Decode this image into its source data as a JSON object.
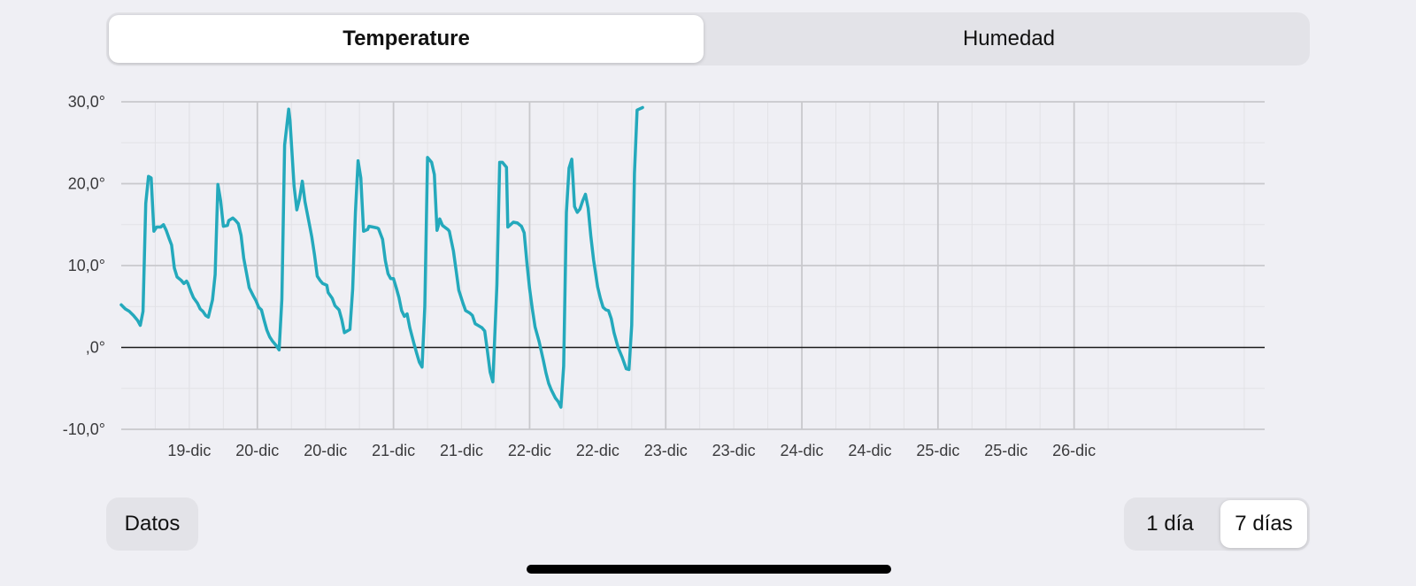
{
  "segmented": {
    "left_label": "Temperature",
    "right_label": "Humedad",
    "selected": "Temperature"
  },
  "buttons": {
    "datos_label": "Datos"
  },
  "range": {
    "options": [
      "1 día",
      "7 días"
    ],
    "selected": "7 días"
  },
  "colors": {
    "line": "#24a9bc",
    "grid_major": "#c8c8cc",
    "grid_minor": "#e2e2e6",
    "zero_line": "#1a1a1a",
    "background": "#efeff4"
  },
  "chart_data": {
    "type": "line",
    "title": "",
    "xlabel": "",
    "ylabel": "",
    "ylim": [
      -10,
      30
    ],
    "y_ticks": [
      {
        "value": 30,
        "label": "30,0°"
      },
      {
        "value": 20,
        "label": "20,0°"
      },
      {
        "value": 10,
        "label": "10,0°"
      },
      {
        "value": 0,
        "label": ",0°"
      },
      {
        "value": -10,
        "label": "-10,0°"
      }
    ],
    "x_range_days": [
      18.5,
      26.9
    ],
    "x_ticks": [
      {
        "day": 19.0,
        "label": "19-dic"
      },
      {
        "day": 19.5,
        "label": "20-dic"
      },
      {
        "day": 20.0,
        "label": "20-dic"
      },
      {
        "day": 20.5,
        "label": "21-dic"
      },
      {
        "day": 21.0,
        "label": "21-dic"
      },
      {
        "day": 21.5,
        "label": "22-dic"
      },
      {
        "day": 22.0,
        "label": "22-dic"
      },
      {
        "day": 22.5,
        "label": "23-dic"
      },
      {
        "day": 23.0,
        "label": "23-dic"
      },
      {
        "day": 23.5,
        "label": "24-dic"
      },
      {
        "day": 24.0,
        "label": "24-dic"
      },
      {
        "day": 24.5,
        "label": "25-dic"
      },
      {
        "day": 25.0,
        "label": "25-dic"
      },
      {
        "day": 25.5,
        "label": "26-dic"
      }
    ],
    "major_gridlines_days": [
      19.5,
      20.5,
      21.5,
      22.5,
      23.5,
      24.5,
      25.5
    ],
    "grid": true,
    "series": [
      {
        "points": [
          [
            18.5,
            5.2
          ],
          [
            18.53,
            4.7
          ],
          [
            18.56,
            4.4
          ],
          [
            18.59,
            3.9
          ],
          [
            18.62,
            3.3
          ],
          [
            18.64,
            2.7
          ],
          [
            18.66,
            4.4
          ],
          [
            18.68,
            17.6
          ],
          [
            18.7,
            20.9
          ],
          [
            18.72,
            20.7
          ],
          [
            18.74,
            14.2
          ],
          [
            18.76,
            14.7
          ],
          [
            18.79,
            14.7
          ],
          [
            18.81,
            15.0
          ],
          [
            18.83,
            14.3
          ],
          [
            18.85,
            13.4
          ],
          [
            18.87,
            12.5
          ],
          [
            18.89,
            9.7
          ],
          [
            18.91,
            8.6
          ],
          [
            18.94,
            8.2
          ],
          [
            18.96,
            7.8
          ],
          [
            18.98,
            8.1
          ],
          [
            18.99,
            7.8
          ],
          [
            19.01,
            6.9
          ],
          [
            19.03,
            6.1
          ],
          [
            19.06,
            5.4
          ],
          [
            19.08,
            4.7
          ],
          [
            19.1,
            4.4
          ],
          [
            19.12,
            3.9
          ],
          [
            19.14,
            3.7
          ],
          [
            19.17,
            5.8
          ],
          [
            19.19,
            8.9
          ],
          [
            19.21,
            19.9
          ],
          [
            19.23,
            17.9
          ],
          [
            19.25,
            14.8
          ],
          [
            19.28,
            14.9
          ],
          [
            19.29,
            15.5
          ],
          [
            19.32,
            15.8
          ],
          [
            19.34,
            15.5
          ],
          [
            19.36,
            15.1
          ],
          [
            19.38,
            13.7
          ],
          [
            19.4,
            10.9
          ],
          [
            19.42,
            9.1
          ],
          [
            19.44,
            7.3
          ],
          [
            19.47,
            6.3
          ],
          [
            19.49,
            5.7
          ],
          [
            19.51,
            4.9
          ],
          [
            19.53,
            4.6
          ],
          [
            19.55,
            3.3
          ],
          [
            19.57,
            2.1
          ],
          [
            19.59,
            1.3
          ],
          [
            19.61,
            0.8
          ],
          [
            19.64,
            0.2
          ],
          [
            19.66,
            -0.3
          ],
          [
            19.68,
            5.9
          ],
          [
            19.7,
            24.7
          ],
          [
            19.73,
            29.1
          ],
          [
            19.74,
            27.7
          ],
          [
            19.77,
            19.7
          ],
          [
            19.79,
            16.8
          ],
          [
            19.81,
            18.2
          ],
          [
            19.83,
            20.3
          ],
          [
            19.85,
            17.8
          ],
          [
            19.88,
            15.2
          ],
          [
            19.9,
            13.5
          ],
          [
            19.92,
            11.3
          ],
          [
            19.94,
            8.7
          ],
          [
            19.96,
            8.2
          ],
          [
            19.98,
            7.8
          ],
          [
            20.01,
            7.6
          ],
          [
            20.02,
            6.7
          ],
          [
            20.05,
            6.0
          ],
          [
            20.07,
            5.1
          ],
          [
            20.1,
            4.6
          ],
          [
            20.12,
            3.4
          ],
          [
            20.14,
            1.8
          ],
          [
            20.18,
            2.2
          ],
          [
            20.2,
            7.1
          ],
          [
            20.22,
            16.5
          ],
          [
            20.24,
            22.8
          ],
          [
            20.26,
            20.7
          ],
          [
            20.28,
            14.2
          ],
          [
            20.31,
            14.4
          ],
          [
            20.32,
            14.8
          ],
          [
            20.35,
            14.7
          ],
          [
            20.38,
            14.6
          ],
          [
            20.39,
            14.5
          ],
          [
            20.42,
            13.2
          ],
          [
            20.44,
            10.6
          ],
          [
            20.46,
            9.0
          ],
          [
            20.48,
            8.4
          ],
          [
            20.5,
            8.4
          ],
          [
            20.52,
            7.3
          ],
          [
            20.54,
            6.1
          ],
          [
            20.56,
            4.5
          ],
          [
            20.58,
            3.8
          ],
          [
            20.6,
            4.1
          ],
          [
            20.62,
            2.4
          ],
          [
            20.65,
            0.5
          ],
          [
            20.67,
            -0.7
          ],
          [
            20.69,
            -1.8
          ],
          [
            20.71,
            -2.4
          ],
          [
            20.73,
            5.0
          ],
          [
            20.75,
            23.2
          ],
          [
            20.78,
            22.6
          ],
          [
            20.8,
            21.1
          ],
          [
            20.82,
            14.3
          ],
          [
            20.83,
            14.9
          ],
          [
            20.84,
            15.7
          ],
          [
            20.86,
            14.9
          ],
          [
            20.9,
            14.4
          ],
          [
            20.91,
            14.2
          ],
          [
            20.94,
            11.8
          ],
          [
            20.96,
            9.4
          ],
          [
            20.98,
            7.0
          ],
          [
            21.01,
            5.4
          ],
          [
            21.03,
            4.5
          ],
          [
            21.06,
            4.2
          ],
          [
            21.08,
            3.9
          ],
          [
            21.1,
            2.9
          ],
          [
            21.12,
            2.7
          ],
          [
            21.15,
            2.4
          ],
          [
            21.17,
            2.0
          ],
          [
            21.19,
            -0.4
          ],
          [
            21.21,
            -3.0
          ],
          [
            21.23,
            -4.2
          ],
          [
            21.26,
            7.7
          ],
          [
            21.28,
            22.6
          ],
          [
            21.3,
            22.6
          ],
          [
            21.33,
            22.0
          ],
          [
            21.34,
            14.7
          ],
          [
            21.36,
            15.0
          ],
          [
            21.38,
            15.3
          ],
          [
            21.41,
            15.2
          ],
          [
            21.44,
            14.8
          ],
          [
            21.46,
            14.0
          ],
          [
            21.48,
            10.3
          ],
          [
            21.5,
            7.2
          ],
          [
            21.52,
            4.7
          ],
          [
            21.54,
            2.5
          ],
          [
            21.57,
            0.7
          ],
          [
            21.6,
            -1.5
          ],
          [
            21.62,
            -3.1
          ],
          [
            21.64,
            -4.4
          ],
          [
            21.66,
            -5.2
          ],
          [
            21.69,
            -6.2
          ],
          [
            21.71,
            -6.6
          ],
          [
            21.73,
            -7.3
          ],
          [
            21.75,
            -2.3
          ],
          [
            21.77,
            16.5
          ],
          [
            21.79,
            21.9
          ],
          [
            21.81,
            23.0
          ],
          [
            21.83,
            17.2
          ],
          [
            21.85,
            16.5
          ],
          [
            21.87,
            16.9
          ],
          [
            21.89,
            17.9
          ],
          [
            21.91,
            18.7
          ],
          [
            21.93,
            17.0
          ],
          [
            21.95,
            13.6
          ],
          [
            21.97,
            10.7
          ],
          [
            22.0,
            7.4
          ],
          [
            22.02,
            6.0
          ],
          [
            22.04,
            4.9
          ],
          [
            22.06,
            4.6
          ],
          [
            22.08,
            4.5
          ],
          [
            22.1,
            3.5
          ],
          [
            22.12,
            1.8
          ],
          [
            22.15,
            0.0
          ],
          [
            22.18,
            -1.2
          ],
          [
            22.21,
            -2.6
          ],
          [
            22.23,
            -2.7
          ],
          [
            22.25,
            2.7
          ],
          [
            22.27,
            21.3
          ],
          [
            22.29,
            29.0
          ],
          [
            22.33,
            29.3
          ]
        ]
      }
    ]
  }
}
